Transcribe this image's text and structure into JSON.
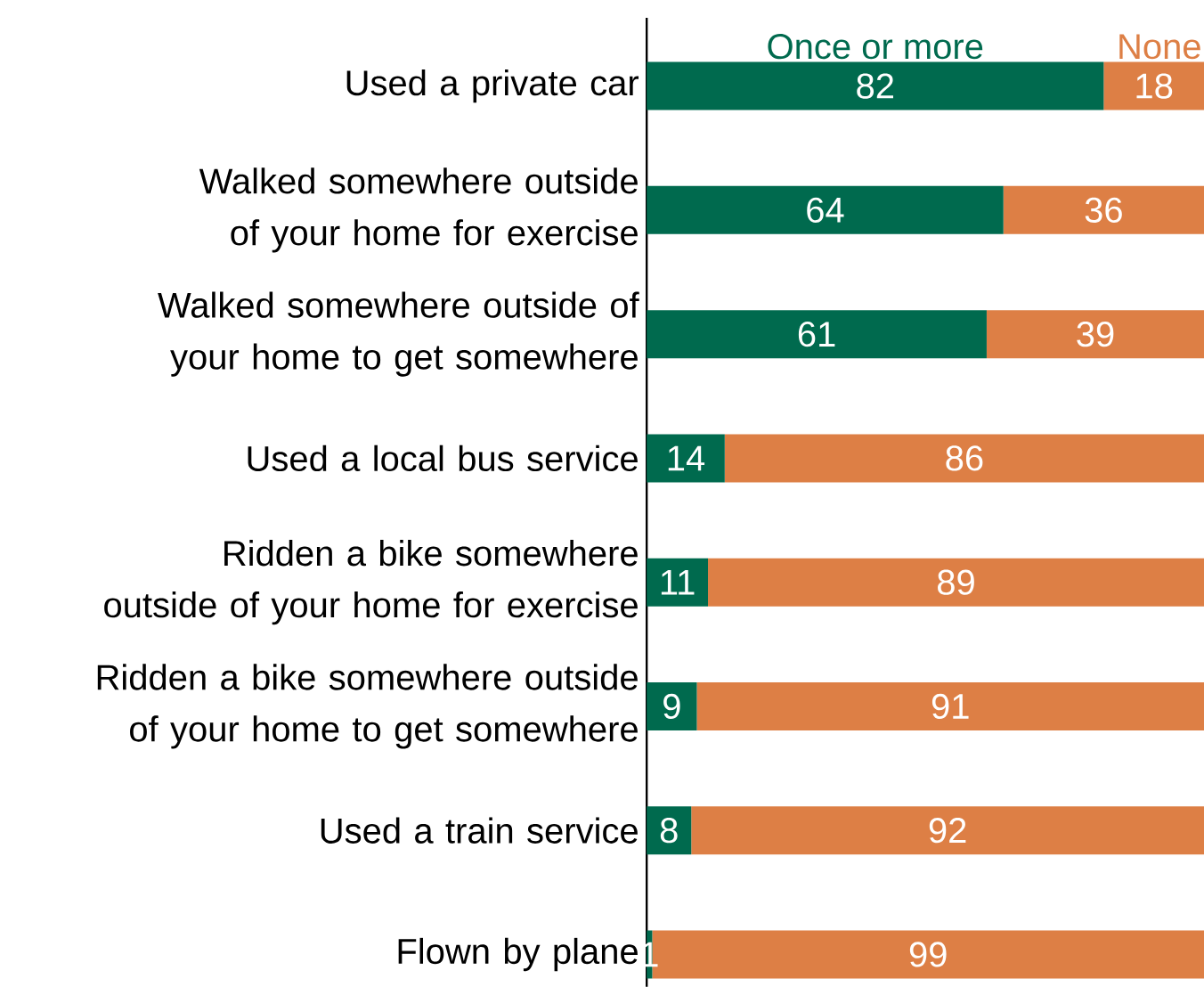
{
  "chart_data": {
    "type": "bar",
    "orientation": "horizontal",
    "stacked": true,
    "data_labels": true,
    "xlim": [
      0,
      100
    ],
    "categories": [
      "Used a private car",
      "Walked somewhere outside of your home for exercise",
      "Walked somewhere outside of your home to get somewhere",
      "Used a local bus service",
      "Ridden a bike somewhere outside of your home for exercise",
      "Ridden a bike somewhere outside of your home to get somewhere",
      "Used a train service",
      "Flown by plane"
    ],
    "series": [
      {
        "name": "Once or more",
        "color": "#006a4e",
        "values": [
          82,
          64,
          61,
          14,
          11,
          9,
          8,
          1
        ]
      },
      {
        "name": "None",
        "color": "#dd7f45",
        "values": [
          18,
          36,
          39,
          86,
          89,
          91,
          92,
          99
        ]
      }
    ]
  }
}
